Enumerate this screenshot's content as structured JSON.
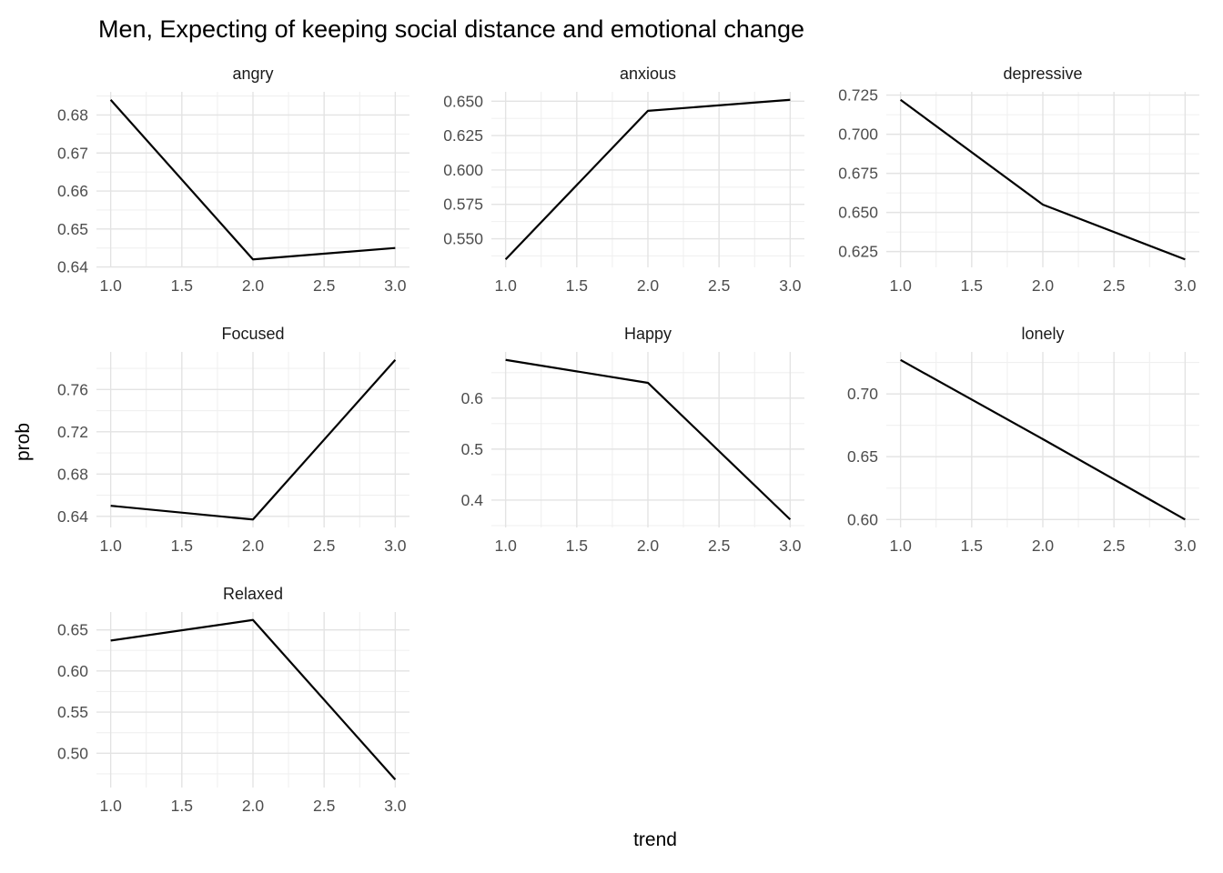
{
  "title": "Men, Expecting of keeping social distance and emotional change",
  "chart_data": {
    "type": "line",
    "title": "Men, Expecting of keeping social distance and emotional change",
    "xlabel": "trend",
    "ylabel": "prob",
    "grid": "major+minor",
    "legend": "none",
    "line_color": "#000000",
    "major_grid_color": "#e3e3e3",
    "minor_grid_color": "#f0f0f0",
    "tick_text_color": "#4d4d4d",
    "x": [
      1,
      2,
      3
    ],
    "xlim": [
      0.9,
      3.1
    ],
    "xtick_labels": [
      "1.0",
      "1.5",
      "2.0",
      "2.5",
      "3.0"
    ],
    "facets": [
      {
        "title": "angry",
        "values": [
          0.684,
          0.642,
          0.645
        ],
        "ytick_labels": [
          "0.64",
          "0.65",
          "0.66",
          "0.67",
          "0.68"
        ],
        "ylim": [
          0.6399,
          0.6861
        ]
      },
      {
        "title": "anxious",
        "values": [
          0.535,
          0.643,
          0.651
        ],
        "ytick_labels": [
          "0.550",
          "0.575",
          "0.600",
          "0.625",
          "0.650"
        ],
        "ylim": [
          0.5292,
          0.6568
        ]
      },
      {
        "title": "depressive",
        "values": [
          0.722,
          0.655,
          0.62
        ],
        "ytick_labels": [
          "0.625",
          "0.650",
          "0.675",
          "0.700",
          "0.725"
        ],
        "ylim": [
          0.6149,
          0.7271
        ]
      },
      {
        "title": "Focused",
        "values": [
          0.65,
          0.637,
          0.788
        ],
        "ytick_labels": [
          "0.64",
          "0.68",
          "0.72",
          "0.76"
        ],
        "ylim": [
          0.6295,
          0.7955
        ]
      },
      {
        "title": "Happy",
        "values": [
          0.675,
          0.63,
          0.362
        ],
        "ytick_labels": [
          "0.4",
          "0.5",
          "0.6"
        ],
        "ylim": [
          0.3464,
          0.6906
        ]
      },
      {
        "title": "lonely",
        "values": [
          0.727,
          0.664,
          0.6
        ],
        "ytick_labels": [
          "0.60",
          "0.65",
          "0.70"
        ],
        "ylim": [
          0.5937,
          0.7334
        ]
      },
      {
        "title": "Relaxed",
        "values": [
          0.637,
          0.662,
          0.468
        ],
        "ytick_labels": [
          "0.50",
          "0.55",
          "0.60",
          "0.65"
        ],
        "ylim": [
          0.4583,
          0.6717
        ]
      }
    ]
  }
}
